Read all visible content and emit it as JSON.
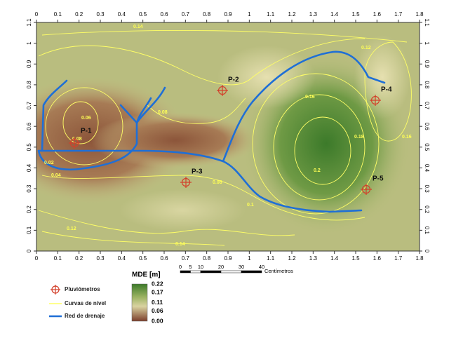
{
  "map": {
    "xlim": [
      0,
      1.8
    ],
    "ylim": [
      0,
      1.1
    ],
    "xticks": [
      0,
      0.1,
      0.2,
      0.3,
      0.4,
      0.5,
      0.6,
      0.7,
      0.8,
      0.9,
      1,
      1.1,
      1.2,
      1.3,
      1.4,
      1.5,
      1.6,
      1.7,
      1.8
    ],
    "yticks": [
      0,
      0.1,
      0.2,
      0.3,
      0.4,
      0.5,
      0.6,
      0.7,
      0.8,
      0.9,
      1,
      1.1
    ],
    "stations": [
      "P-1",
      "P-2",
      "P-3",
      "P-4",
      "P-5"
    ],
    "contour_labels": [
      0.14,
      0.12,
      0.16,
      0.18,
      0.2,
      0.16,
      0.08,
      0.06,
      0.08,
      0.02,
      0.04,
      0.08,
      0.1,
      0.12,
      0.14
    ],
    "legend": [
      "Pluviómetros",
      "Curvas de nivel",
      "Red de drenaje"
    ],
    "colorbar": {
      "title": "MDE [m]",
      "ticks": [
        0.22,
        0.17,
        0.11,
        0.06,
        {
          "value": 0,
          "label": "0.00"
        }
      ]
    },
    "scale_bar": {
      "ticks": [
        0,
        5,
        10,
        20,
        30,
        40
      ],
      "unit": "Centímetros"
    }
  }
}
